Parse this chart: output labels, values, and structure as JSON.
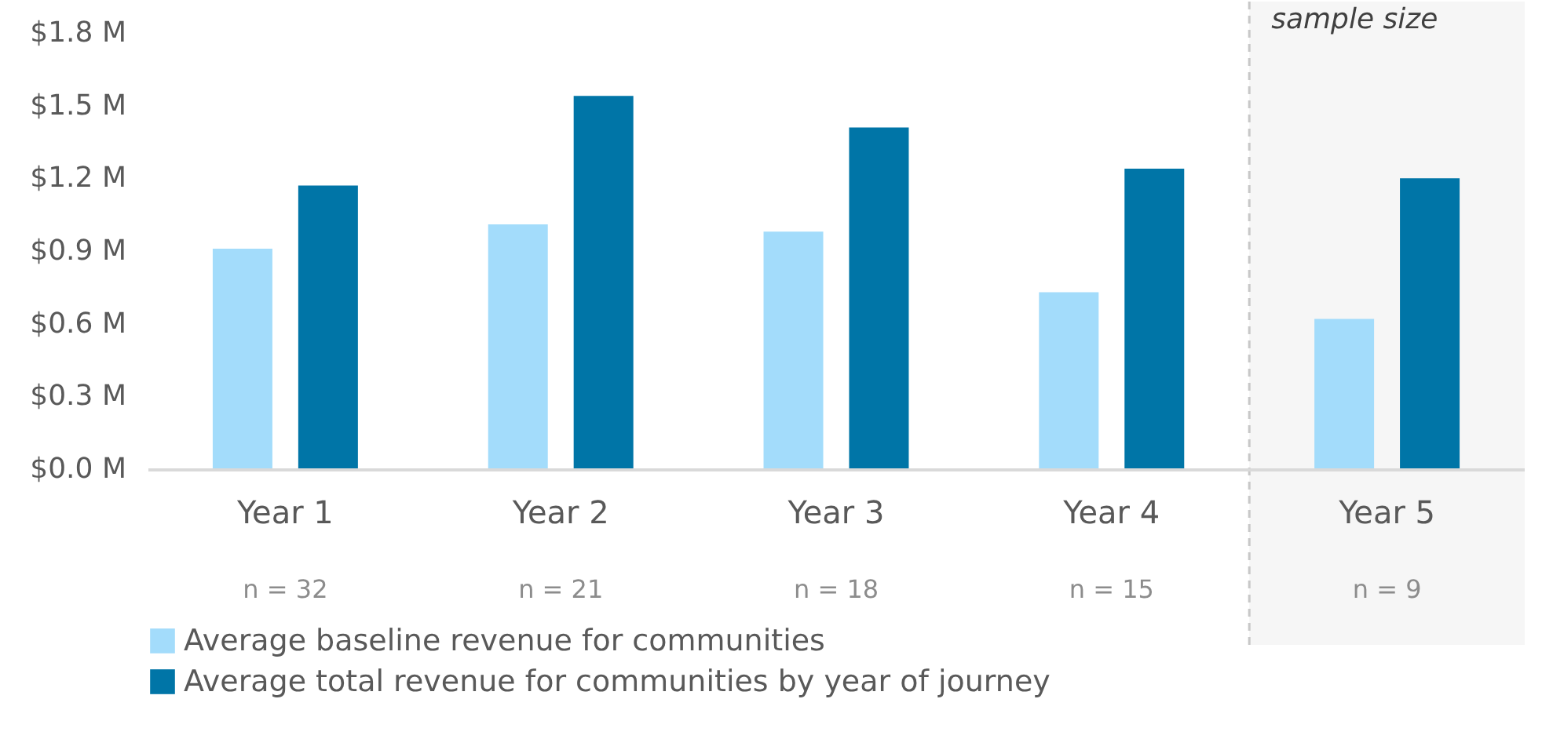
{
  "chart_data": {
    "type": "bar",
    "categories": [
      "Year 1",
      "Year 2",
      "Year 3",
      "Year 4",
      "Year 5"
    ],
    "series": [
      {
        "name": "Average baseline revenue for communities",
        "color": "#a3dcfb",
        "values": [
          0.91,
          1.01,
          0.98,
          0.73,
          0.62
        ]
      },
      {
        "name": "Average total revenue for communities by year of journey",
        "color": "#0075a7",
        "values": [
          1.17,
          1.54,
          1.41,
          1.24,
          1.2
        ]
      }
    ],
    "ylim": [
      0,
      1.8
    ],
    "yticks": [
      {
        "value": 0,
        "label": "$0.0 M"
      },
      {
        "value": 0.3,
        "label": "$0.3 M"
      },
      {
        "value": 0.6,
        "label": "$0.6 M"
      },
      {
        "value": 0.9,
        "label": "$0.9 M"
      },
      {
        "value": 1.2,
        "label": "$1.2 M"
      },
      {
        "value": 1.5,
        "label": "$1.5 M"
      },
      {
        "value": 1.8,
        "label": "$1.8 M"
      }
    ],
    "bands": [
      {
        "axis": "x",
        "from": "Year 5",
        "to": "Year 5",
        "label": "sample size",
        "color": "#f6f6f6"
      }
    ],
    "annotations": [
      "n = 32",
      "n = 21",
      "n = 18",
      "n = 15",
      "n = 9"
    ],
    "grid": false,
    "legend": "bottom"
  }
}
